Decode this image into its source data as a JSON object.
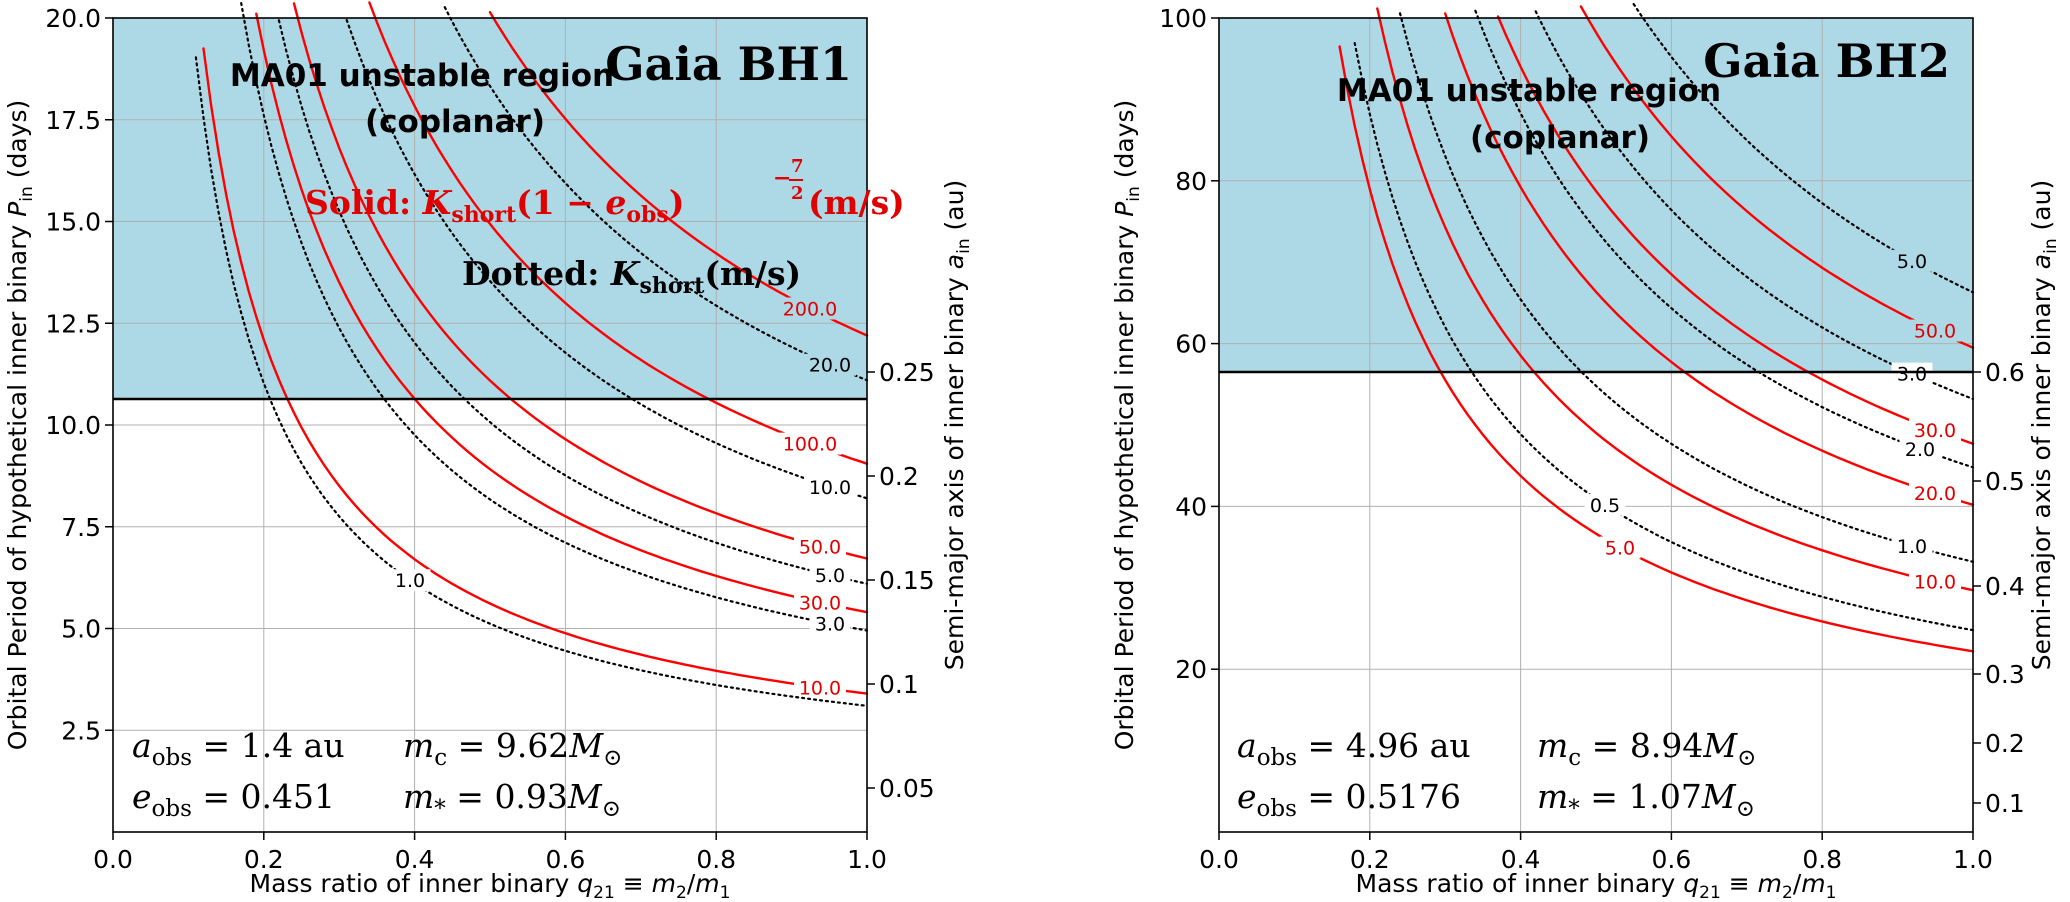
{
  "chart_data": [
    {
      "type": "line",
      "title": "Gaia BH1",
      "xlabel": "Mass ratio of inner binary q₂₁ ≡ m₂/m₁",
      "ylabel": "Orbital Period of hypothetical inner binary Pᵢₙ (days)",
      "ylabel_right": "Semi-major axis of inner binary aᵢₙ (au)",
      "xlim": [
        0.0,
        1.0
      ],
      "ylim": [
        0.0,
        20.0
      ],
      "xticks": [
        "0.0",
        "0.2",
        "0.4",
        "0.6",
        "0.8",
        "1.0"
      ],
      "yticks": [
        "2.5",
        "5.0",
        "7.5",
        "10.0",
        "12.5",
        "15.0",
        "17.5",
        "20.0"
      ],
      "right_ticks": [
        "0.05",
        "0.1",
        "0.15",
        "0.2",
        "0.25"
      ],
      "grid": true,
      "unstable_region": {
        "label_line1": "MA01 unstable region",
        "label_line2": "(coplanar)",
        "boundary_P": 10.63,
        "color": "#add8e6"
      },
      "legend_solid": "Solid: K_short (1 − e_obs)^(−7/2) (m/s)",
      "legend_dotted": "Dotted: K_short (m/s)",
      "series": [
        {
          "style": "solid",
          "color": "#ff0000",
          "label": "10.0",
          "P_at_q1": 3.4
        },
        {
          "style": "solid",
          "color": "#ff0000",
          "label": "30.0",
          "P_at_q1": 5.4
        },
        {
          "style": "solid",
          "color": "#ff0000",
          "label": "50.0",
          "P_at_q1": 6.72
        },
        {
          "style": "solid",
          "color": "#ff0000",
          "label": "100.0",
          "P_at_q1": 9.05
        },
        {
          "style": "solid",
          "color": "#ff0000",
          "label": "200.0",
          "P_at_q1": 12.2
        },
        {
          "style": "dotted",
          "color": "#000000",
          "label": "1.0",
          "P_at_q1": 3.1
        },
        {
          "style": "dotted",
          "color": "#000000",
          "label": "3.0",
          "P_at_q1": 4.95
        },
        {
          "style": "dotted",
          "color": "#000000",
          "label": "5.0",
          "P_at_q1": 6.1
        },
        {
          "style": "dotted",
          "color": "#000000",
          "label": "10.0",
          "P_at_q1": 8.2
        },
        {
          "style": "dotted",
          "color": "#000000",
          "label": "20.0",
          "P_at_q1": 11.1
        }
      ],
      "params": {
        "a_obs": "1.4 au",
        "e_obs": "0.451",
        "m_c": "9.62",
        "m_star": "0.93"
      }
    },
    {
      "type": "line",
      "title": "Gaia BH2",
      "xlabel": "Mass ratio of inner binary q₂₁ ≡ m₂/m₁",
      "ylabel": "Orbital Period of hypothetical inner binary Pᵢₙ (days)",
      "ylabel_right": "Semi-major axis of inner binary aᵢₙ (au)",
      "xlim": [
        0.0,
        1.0
      ],
      "ylim": [
        0,
        100
      ],
      "xticks": [
        "0.0",
        "0.2",
        "0.4",
        "0.6",
        "0.8",
        "1.0"
      ],
      "yticks": [
        "20",
        "40",
        "60",
        "80",
        "100"
      ],
      "right_ticks": [
        "0.1",
        "0.2",
        "0.3",
        "0.4",
        "0.5",
        "0.6"
      ],
      "grid": true,
      "unstable_region": {
        "label_line1": "MA01 unstable region",
        "label_line2": "(coplanar)",
        "boundary_P": 56.6,
        "color": "#add8e6"
      },
      "series": [
        {
          "style": "solid",
          "color": "#ff0000",
          "label": "5.0",
          "P_at_q1": 22.2
        },
        {
          "style": "solid",
          "color": "#ff0000",
          "label": "10.0",
          "P_at_q1": 29.7
        },
        {
          "style": "solid",
          "color": "#ff0000",
          "label": "20.0",
          "P_at_q1": 40.2
        },
        {
          "style": "solid",
          "color": "#ff0000",
          "label": "30.0",
          "P_at_q1": 47.7
        },
        {
          "style": "solid",
          "color": "#ff0000",
          "label": "50.0",
          "P_at_q1": 59.5
        },
        {
          "style": "dotted",
          "color": "#000000",
          "label": "0.5",
          "P_at_q1": 24.8
        },
        {
          "style": "dotted",
          "color": "#000000",
          "label": "1.0",
          "P_at_q1": 33.2
        },
        {
          "style": "dotted",
          "color": "#000000",
          "label": "2.0",
          "P_at_q1": 44.8
        },
        {
          "style": "dotted",
          "color": "#000000",
          "label": "3.0",
          "P_at_q1": 53.2
        },
        {
          "style": "dotted",
          "color": "#000000",
          "label": "5.0",
          "P_at_q1": 66.3
        }
      ],
      "params": {
        "a_obs": "4.96 au",
        "e_obs": "0.5176",
        "m_c": "8.94",
        "m_star": "1.07"
      }
    }
  ]
}
